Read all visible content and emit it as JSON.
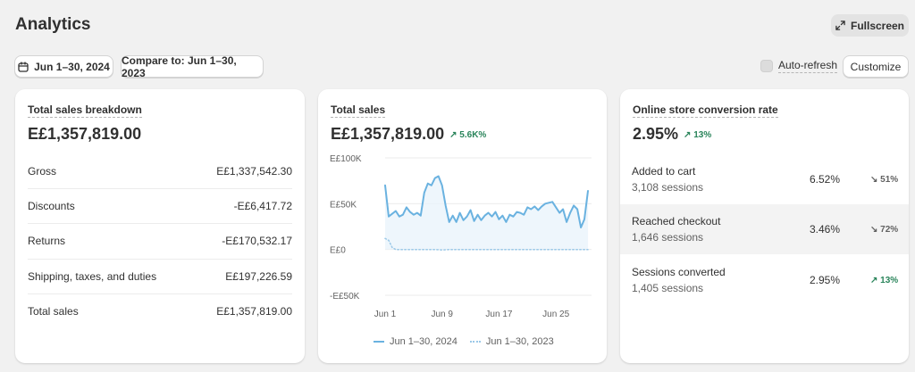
{
  "header": {
    "title": "Analytics",
    "fullscreen_label": "Fullscreen",
    "date_range": "Jun 1–30, 2024",
    "compare_label": "Compare to: Jun 1–30, 2023",
    "auto_refresh_label": "Auto-refresh",
    "customize_label": "Customize"
  },
  "breakdown": {
    "title": "Total sales breakdown",
    "total": "E£1,357,819.00",
    "rows": [
      {
        "label": "Gross",
        "value": "E£1,337,542.30"
      },
      {
        "label": "Discounts",
        "value": "-E£6,417.72"
      },
      {
        "label": "Returns",
        "value": "-E£170,532.17"
      },
      {
        "label": "Shipping, taxes, and duties",
        "value": "E£197,226.59"
      },
      {
        "label": "Total sales",
        "value": "E£1,357,819.00"
      }
    ]
  },
  "sales": {
    "title": "Total sales",
    "value": "E£1,357,819.00",
    "delta": "5.6K%",
    "legend_current": "Jun 1–30, 2024",
    "legend_previous": "Jun 1–30, 2023"
  },
  "chart_data": {
    "type": "line",
    "title": "",
    "xlabel": "",
    "ylabel": "",
    "y_tick_labels": [
      "E£100K",
      "E£50K",
      "E£0",
      "-E£50K"
    ],
    "y_ticks": [
      100000,
      50000,
      0,
      -50000
    ],
    "ylim": [
      -50000,
      100000
    ],
    "x_tick_labels": [
      "Jun 1",
      "Jun 9",
      "Jun 17",
      "Jun 25"
    ],
    "x_tick_positions": [
      1,
      9,
      17,
      25
    ],
    "xlim": [
      1,
      30
    ],
    "grid": true,
    "legend_position": "bottom",
    "series": [
      {
        "name": "Jun 1–30, 2024",
        "color": "#6ab2e0",
        "x": [
          1,
          1.5,
          2,
          2.5,
          3,
          3.5,
          4,
          4.5,
          5,
          5.5,
          6,
          6.5,
          7,
          7.5,
          8,
          8.5,
          9,
          9.5,
          10,
          10.5,
          11,
          11.5,
          12,
          12.5,
          13,
          13.5,
          14,
          14.5,
          15,
          15.5,
          16,
          16.5,
          17,
          17.5,
          18,
          18.5,
          19,
          19.5,
          20,
          20.5,
          21,
          21.5,
          22,
          22.5,
          23,
          23.5,
          24,
          24.5,
          25,
          25.5,
          26,
          26.5,
          27,
          27.5,
          28,
          28.5,
          29,
          29.5
        ],
        "values": [
          70000,
          36000,
          39000,
          42000,
          36000,
          38000,
          46000,
          41000,
          38000,
          40000,
          37000,
          62000,
          72000,
          70000,
          78000,
          80000,
          70000,
          48000,
          30000,
          37000,
          30000,
          40000,
          32000,
          36000,
          43000,
          31000,
          38000,
          32000,
          37000,
          40000,
          36000,
          41000,
          33000,
          37000,
          30000,
          38000,
          36000,
          41000,
          40000,
          38000,
          46000,
          44000,
          47000,
          43000,
          47000,
          50000,
          51000,
          52000,
          46000,
          40000,
          44000,
          30000,
          40000,
          48000,
          44000,
          24000,
          33000,
          64000
        ]
      },
      {
        "name": "Jun 1–30, 2023",
        "color": "#9cc9e8",
        "x": [
          1,
          1.5,
          2,
          2.5,
          3,
          4,
          5,
          6,
          7,
          8,
          9,
          10,
          11,
          12,
          13,
          14,
          15,
          16,
          17,
          18,
          19,
          20,
          21,
          22,
          23,
          24,
          25,
          26,
          27,
          28,
          29,
          29.5
        ],
        "values": [
          12000,
          10000,
          2000,
          0,
          0,
          0,
          0,
          0,
          0,
          0,
          -500,
          0,
          0,
          0,
          0,
          0,
          0,
          0,
          0,
          0,
          0,
          0,
          0,
          0,
          0,
          0,
          0,
          0,
          0,
          0,
          0,
          0
        ]
      }
    ]
  },
  "conversion": {
    "title": "Online store conversion rate",
    "value": "2.95%",
    "delta": "13%",
    "rows": [
      {
        "label": "Added to cart",
        "sessions": "3,108 sessions",
        "pct": "6.52%",
        "delta": "51%",
        "direction": "down"
      },
      {
        "label": "Reached checkout",
        "sessions": "1,646 sessions",
        "pct": "3.46%",
        "delta": "72%",
        "direction": "down"
      },
      {
        "label": "Sessions converted",
        "sessions": "1,405 sessions",
        "pct": "2.95%",
        "delta": "13%",
        "direction": "up"
      }
    ]
  }
}
